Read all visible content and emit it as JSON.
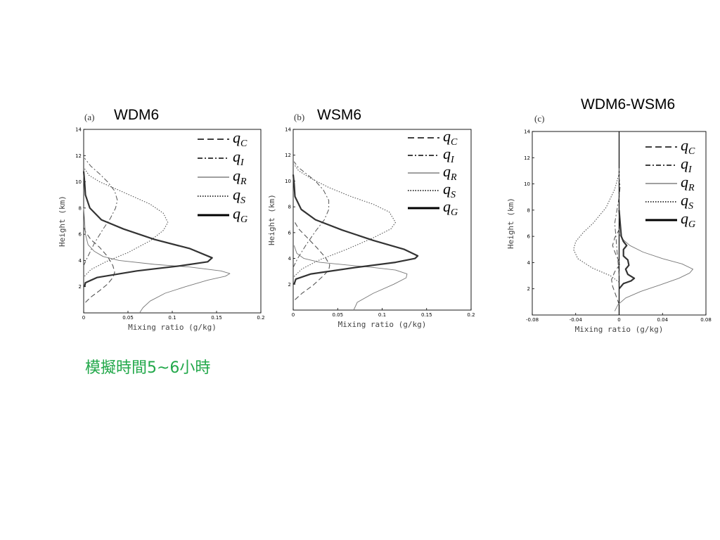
{
  "slide": {
    "caption": "模擬時間5~6小時",
    "caption_color": "#22a84a"
  },
  "chart_data": [
    {
      "panel": "(a)",
      "title": "WDM6",
      "type": "line",
      "xlabel": "Mixing ratio (g/kg)",
      "ylabel": "Height (km)",
      "xlim": [
        0,
        0.2
      ],
      "ylim": [
        0,
        14
      ],
      "x_ticks": [
        "0",
        "0.05",
        "0.1",
        "0.15",
        "0.2"
      ],
      "y_ticks": [
        "2",
        "4",
        "6",
        "8",
        "10",
        "12",
        "14"
      ],
      "legend_position": "top-right",
      "grid": false,
      "series": [
        {
          "name": "q",
          "sub": "C",
          "style": "dashed",
          "points": [
            [
              0.002,
              0.8
            ],
            [
              0.008,
              1.2
            ],
            [
              0.018,
              1.7
            ],
            [
              0.027,
              2.2
            ],
            [
              0.033,
              2.7
            ],
            [
              0.035,
              3.1
            ],
            [
              0.033,
              3.6
            ],
            [
              0.027,
              4.3
            ],
            [
              0.018,
              5.0
            ],
            [
              0.008,
              5.6
            ],
            [
              0.002,
              6.2
            ],
            [
              0,
              6.6
            ]
          ]
        },
        {
          "name": "q",
          "sub": "I",
          "style": "dashdot",
          "points": [
            [
              0,
              3.6
            ],
            [
              0.004,
              4.2
            ],
            [
              0.012,
              5.3
            ],
            [
              0.022,
              6.4
            ],
            [
              0.03,
              7.2
            ],
            [
              0.036,
              8.0
            ],
            [
              0.038,
              8.6
            ],
            [
              0.035,
              9.3
            ],
            [
              0.027,
              10.0
            ],
            [
              0.018,
              10.6
            ],
            [
              0.008,
              11.2
            ],
            [
              0.001,
              11.8
            ]
          ]
        },
        {
          "name": "q",
          "sub": "R",
          "style": "thin",
          "points": [
            [
              0.063,
              0
            ],
            [
              0.067,
              0.4
            ],
            [
              0.075,
              0.9
            ],
            [
              0.092,
              1.5
            ],
            [
              0.115,
              2.0
            ],
            [
              0.14,
              2.5
            ],
            [
              0.16,
              2.8
            ],
            [
              0.165,
              3.0
            ],
            [
              0.155,
              3.2
            ],
            [
              0.12,
              3.5
            ],
            [
              0.08,
              3.7
            ],
            [
              0.04,
              4.0
            ],
            [
              0.022,
              4.3
            ],
            [
              0.012,
              4.7
            ],
            [
              0.005,
              5.2
            ],
            [
              0.002,
              6.0
            ],
            [
              0.001,
              7.0
            ],
            [
              0,
              8.0
            ]
          ]
        },
        {
          "name": "q",
          "sub": "S",
          "style": "dotted",
          "points": [
            [
              0.001,
              2.8
            ],
            [
              0.008,
              3.3
            ],
            [
              0.025,
              3.9
            ],
            [
              0.05,
              4.6
            ],
            [
              0.075,
              5.5
            ],
            [
              0.09,
              6.3
            ],
            [
              0.095,
              6.9
            ],
            [
              0.09,
              7.6
            ],
            [
              0.075,
              8.3
            ],
            [
              0.055,
              8.9
            ],
            [
              0.035,
              9.5
            ],
            [
              0.018,
              10.0
            ],
            [
              0.006,
              10.5
            ],
            [
              0.001,
              11.0
            ]
          ]
        },
        {
          "name": "q",
          "sub": "G",
          "style": "thick",
          "points": [
            [
              0.001,
              2.0
            ],
            [
              0.002,
              2.3
            ],
            [
              0.015,
              2.7
            ],
            [
              0.06,
              3.2
            ],
            [
              0.11,
              3.6
            ],
            [
              0.14,
              3.9
            ],
            [
              0.145,
              4.2
            ],
            [
              0.12,
              4.9
            ],
            [
              0.08,
              5.6
            ],
            [
              0.045,
              6.4
            ],
            [
              0.02,
              7.1
            ],
            [
              0.007,
              8.0
            ],
            [
              0.002,
              9.0
            ],
            [
              0.001,
              10.0
            ],
            [
              0,
              10.8
            ]
          ]
        }
      ]
    },
    {
      "panel": "(b)",
      "title": "WSM6",
      "type": "line",
      "xlabel": "Mixing ratio (g/kg)",
      "ylabel": "Height (km)",
      "xlim": [
        0,
        0.2
      ],
      "ylim": [
        0,
        14
      ],
      "x_ticks": [
        "0",
        "0.05",
        "0.1",
        "0.15",
        "0.2"
      ],
      "y_ticks": [
        "2",
        "4",
        "6",
        "8",
        "10",
        "12",
        "14"
      ],
      "legend_position": "top-right",
      "grid": false,
      "series": [
        {
          "name": "q",
          "sub": "C",
          "style": "dashed",
          "points": [
            [
              0.002,
              0.8
            ],
            [
              0.01,
              1.3
            ],
            [
              0.022,
              1.9
            ],
            [
              0.033,
              2.6
            ],
            [
              0.04,
              3.1
            ],
            [
              0.041,
              3.5
            ],
            [
              0.036,
              4.1
            ],
            [
              0.027,
              4.8
            ],
            [
              0.016,
              5.6
            ],
            [
              0.006,
              6.3
            ],
            [
              0.001,
              6.9
            ]
          ]
        },
        {
          "name": "q",
          "sub": "I",
          "style": "dashdot",
          "points": [
            [
              0,
              3.3
            ],
            [
              0.005,
              4.0
            ],
            [
              0.014,
              5.0
            ],
            [
              0.025,
              6.1
            ],
            [
              0.035,
              7.0
            ],
            [
              0.04,
              7.8
            ],
            [
              0.04,
              8.5
            ],
            [
              0.034,
              9.3
            ],
            [
              0.025,
              10.0
            ],
            [
              0.014,
              10.6
            ],
            [
              0.005,
              11.1
            ],
            [
              0.001,
              11.5
            ]
          ]
        },
        {
          "name": "q",
          "sub": "R",
          "style": "thin",
          "points": [
            [
              0.068,
              0
            ],
            [
              0.072,
              0.6
            ],
            [
              0.09,
              1.3
            ],
            [
              0.113,
              2.0
            ],
            [
              0.127,
              2.5
            ],
            [
              0.128,
              2.8
            ],
            [
              0.115,
              3.1
            ],
            [
              0.09,
              3.3
            ],
            [
              0.06,
              3.5
            ],
            [
              0.03,
              3.7
            ],
            [
              0.012,
              4.0
            ],
            [
              0.004,
              4.4
            ],
            [
              0.001,
              5.0
            ]
          ]
        },
        {
          "name": "q",
          "sub": "S",
          "style": "dotted",
          "points": [
            [
              0.001,
              2.6
            ],
            [
              0.01,
              3.2
            ],
            [
              0.03,
              3.9
            ],
            [
              0.06,
              4.7
            ],
            [
              0.09,
              5.6
            ],
            [
              0.11,
              6.3
            ],
            [
              0.115,
              6.8
            ],
            [
              0.108,
              7.6
            ],
            [
              0.09,
              8.2
            ],
            [
              0.065,
              8.8
            ],
            [
              0.04,
              9.5
            ],
            [
              0.02,
              10.2
            ],
            [
              0.006,
              10.8
            ],
            [
              0.001,
              11.3
            ]
          ]
        },
        {
          "name": "q",
          "sub": "G",
          "style": "thick",
          "points": [
            [
              0.001,
              2.0
            ],
            [
              0.003,
              2.4
            ],
            [
              0.02,
              2.8
            ],
            [
              0.07,
              3.3
            ],
            [
              0.115,
              3.7
            ],
            [
              0.137,
              4.0
            ],
            [
              0.14,
              4.2
            ],
            [
              0.125,
              4.7
            ],
            [
              0.09,
              5.4
            ],
            [
              0.055,
              6.2
            ],
            [
              0.025,
              7.0
            ],
            [
              0.009,
              7.8
            ],
            [
              0.002,
              8.8
            ],
            [
              0.001,
              9.8
            ],
            [
              0,
              10.5
            ]
          ]
        }
      ]
    },
    {
      "panel": "(c)",
      "title": "WDM6-WSM6",
      "type": "line",
      "xlabel": "Mixing ratio (g/kg)",
      "ylabel": "Height (km)",
      "xlim": [
        -0.08,
        0.08
      ],
      "ylim": [
        0,
        14
      ],
      "x_ticks": [
        "-0.08",
        "-0.04",
        "0",
        "0.04",
        "0.08"
      ],
      "y_ticks": [
        "2",
        "4",
        "6",
        "8",
        "10",
        "12",
        "14"
      ],
      "legend_position": "top-right",
      "grid": false,
      "series": [
        {
          "name": "q",
          "sub": "C",
          "style": "dashed",
          "points": [
            [
              0,
              0.8
            ],
            [
              -0.003,
              1.5
            ],
            [
              -0.006,
              2.2
            ],
            [
              -0.007,
              2.7
            ],
            [
              -0.004,
              3.3
            ],
            [
              0.001,
              3.9
            ],
            [
              -0.003,
              4.6
            ],
            [
              -0.006,
              5.3
            ],
            [
              -0.004,
              5.9
            ],
            [
              0,
              6.5
            ],
            [
              0.001,
              7.0
            ],
            [
              0,
              7.5
            ]
          ]
        },
        {
          "name": "q",
          "sub": "I",
          "style": "dashdot",
          "points": [
            [
              0,
              3.0
            ],
            [
              -0.001,
              4.0
            ],
            [
              -0.002,
              5.0
            ],
            [
              -0.003,
              6.0
            ],
            [
              -0.004,
              7.0
            ],
            [
              -0.002,
              8.0
            ],
            [
              0,
              9.0
            ],
            [
              0.001,
              9.8
            ],
            [
              0,
              10.5
            ],
            [
              0,
              11.2
            ]
          ]
        },
        {
          "name": "q",
          "sub": "R",
          "style": "thin",
          "points": [
            [
              -0.004,
              0.3
            ],
            [
              -0.001,
              0.8
            ],
            [
              0.006,
              1.3
            ],
            [
              0.02,
              1.8
            ],
            [
              0.038,
              2.3
            ],
            [
              0.055,
              2.8
            ],
            [
              0.065,
              3.2
            ],
            [
              0.068,
              3.5
            ],
            [
              0.058,
              3.9
            ],
            [
              0.04,
              4.3
            ],
            [
              0.022,
              4.8
            ],
            [
              0.01,
              5.3
            ],
            [
              0.003,
              5.8
            ],
            [
              0,
              6.2
            ]
          ]
        },
        {
          "name": "q",
          "sub": "S",
          "style": "dotted",
          "points": [
            [
              0,
              2.5
            ],
            [
              -0.008,
              3.0
            ],
            [
              -0.025,
              3.6
            ],
            [
              -0.038,
              4.3
            ],
            [
              -0.042,
              5.0
            ],
            [
              -0.04,
              5.6
            ],
            [
              -0.033,
              6.3
            ],
            [
              -0.024,
              7.0
            ],
            [
              -0.018,
              7.6
            ],
            [
              -0.012,
              8.2
            ],
            [
              -0.008,
              8.9
            ],
            [
              -0.004,
              9.6
            ],
            [
              -0.002,
              10.2
            ],
            [
              0,
              10.8
            ]
          ]
        },
        {
          "name": "q",
          "sub": "G",
          "style": "thick",
          "points": [
            [
              0,
              2.0
            ],
            [
              0.004,
              2.4
            ],
            [
              0.011,
              2.6
            ],
            [
              0.014,
              2.8
            ],
            [
              0.008,
              3.1
            ],
            [
              0.006,
              3.5
            ],
            [
              0.009,
              3.8
            ],
            [
              0.008,
              4.2
            ],
            [
              0.004,
              4.5
            ],
            [
              0.004,
              5.0
            ],
            [
              0.007,
              5.3
            ],
            [
              0.004,
              5.6
            ],
            [
              0.002,
              6.0
            ],
            [
              0.001,
              7.0
            ],
            [
              0,
              8.0
            ]
          ]
        }
      ]
    }
  ]
}
